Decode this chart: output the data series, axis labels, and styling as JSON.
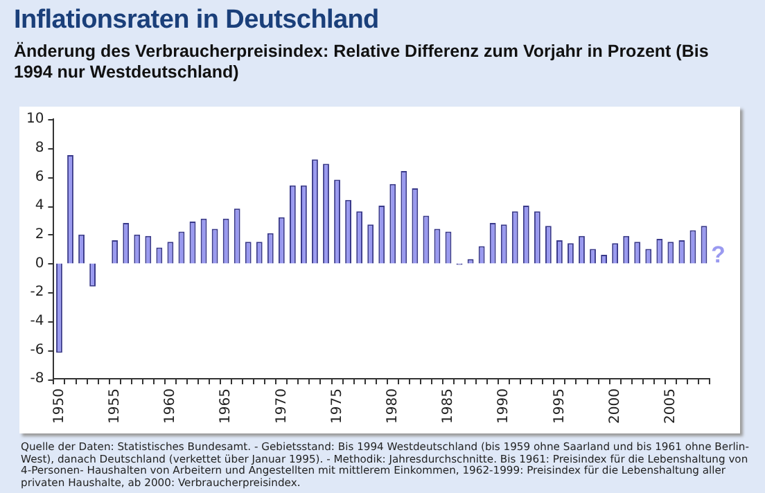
{
  "chart_data": {
    "type": "bar",
    "title": "Inflationsraten in Deutschland",
    "subtitle": "Änderung des Verbraucherpreisindex: Relative Differenz zum Vorjahr in Prozent (Bis 1994 nur Westdeutschland)",
    "categories": [
      "1950",
      null,
      null,
      null,
      null,
      "1955",
      null,
      null,
      null,
      null,
      "1960",
      null,
      null,
      null,
      null,
      "1965",
      null,
      null,
      null,
      null,
      "1970",
      null,
      null,
      null,
      null,
      "1975",
      null,
      null,
      null,
      null,
      "1980",
      null,
      null,
      null,
      null,
      "1985",
      null,
      null,
      null,
      null,
      "1990",
      null,
      null,
      null,
      null,
      "1995",
      null,
      null,
      null,
      null,
      "2000",
      null,
      null,
      null,
      null,
      "2005",
      null,
      null,
      null
    ],
    "values": [
      -6.2,
      7.5,
      2.0,
      -1.6,
      0,
      1.6,
      2.8,
      2.0,
      1.9,
      1.1,
      1.5,
      2.2,
      2.9,
      3.1,
      2.4,
      3.1,
      3.8,
      1.5,
      1.5,
      2.1,
      3.2,
      5.4,
      5.4,
      7.2,
      6.9,
      5.8,
      4.4,
      3.6,
      2.7,
      4.0,
      5.5,
      6.4,
      5.2,
      3.3,
      2.4,
      2.2,
      -0.1,
      0.3,
      1.2,
      2.8,
      2.7,
      3.6,
      4.0,
      3.6,
      2.6,
      1.6,
      1.4,
      1.9,
      1.0,
      0.6,
      1.4,
      1.9,
      1.5,
      1.0,
      1.7,
      1.5,
      1.6,
      2.3,
      2.6
    ],
    "color": "#9a9af0",
    "ylim": [
      -8,
      10
    ],
    "yticks": [
      -8,
      -6,
      -4,
      -2,
      0,
      2,
      4,
      6,
      8,
      10
    ],
    "annotations": [
      "?",
      "Quelle der Daten: Statistisches Bundesamt. - Gebietsstand: Bis 1994 Westdeutschland (bis 1959 ohne Saarland und bis 1961 ohne Berlin-West), danach Deutschland (verkettet über Januar 1995). - Methodik: Jahresdurchschnitte. Bis 1961: Preisindex für die Lebenshaltung von 4-Personen- Haushalten von Arbeitern und Angestellten mit mittlerem Einkommen, 1962-1999: Preisindex für die Lebenshaltung aller privaten Haushalte, ab 2000: Verbraucherpreisindex."
    ]
  }
}
